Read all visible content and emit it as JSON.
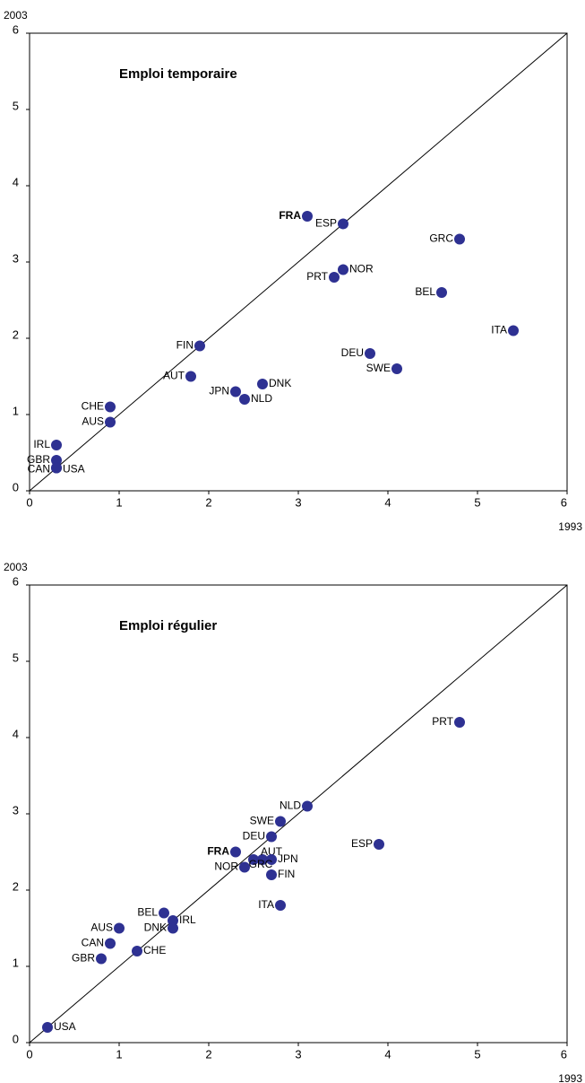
{
  "chart_data": [
    {
      "type": "scatter",
      "title": "Emploi temporaire",
      "x_label": "1993",
      "y_label": "2003",
      "color": "#2e3192",
      "labels": [
        "FRA",
        "ESP",
        "GRC",
        "NOR",
        "PRT",
        "BEL",
        "ITA",
        "FIN",
        "DEU",
        "SWE",
        "AUT",
        "DNK",
        "JPN",
        "NLD",
        "CHE",
        "AUS",
        "IRL",
        "GBR",
        "CAN",
        "USA"
      ],
      "x": [
        3.1,
        3.5,
        4.8,
        3.5,
        3.4,
        4.6,
        5.4,
        1.9,
        3.8,
        4.1,
        1.8,
        2.6,
        2.3,
        2.4,
        0.9,
        0.9,
        0.3,
        0.3,
        0.3,
        0.3
      ],
      "values": [
        3.6,
        3.5,
        3.3,
        2.9,
        2.8,
        2.6,
        2.1,
        1.9,
        1.8,
        1.6,
        1.5,
        1.4,
        1.3,
        1.2,
        1.1,
        0.9,
        0.6,
        0.4,
        0.3,
        0.3
      ],
      "xlim": [
        0,
        6
      ],
      "ylim": [
        0,
        6
      ],
      "xticks": [
        0,
        1,
        2,
        3,
        4,
        5,
        6
      ],
      "yticks": [
        0,
        1,
        2,
        3,
        4,
        5,
        6
      ]
    },
    {
      "type": "scatter",
      "title": "Emploi régulier",
      "x_label": "1993",
      "y_label": "2003",
      "color": "#2e3192",
      "labels": [
        "PRT",
        "NLD",
        "SWE",
        "DEU",
        "ESP",
        "FRA",
        "AUT",
        "JPN",
        "GRC",
        "NOR",
        "FIN",
        "ITA",
        "BEL",
        "IRL",
        "DNK",
        "AUS",
        "CAN",
        "CHE",
        "GBR",
        "USA"
      ],
      "x": [
        4.8,
        3.1,
        2.8,
        2.7,
        3.9,
        2.3,
        2.6,
        2.7,
        2.5,
        2.4,
        2.7,
        2.8,
        1.5,
        1.6,
        1.6,
        1.0,
        0.9,
        1.2,
        0.8,
        0.2
      ],
      "values": [
        4.2,
        3.1,
        2.9,
        2.7,
        2.6,
        2.5,
        2.4,
        2.4,
        2.4,
        2.3,
        2.2,
        1.8,
        1.7,
        1.6,
        1.5,
        1.5,
        1.3,
        1.2,
        1.1,
        0.2
      ],
      "xlim": [
        0,
        6
      ],
      "ylim": [
        0,
        6
      ],
      "xticks": [
        0,
        1,
        2,
        3,
        4,
        5,
        6
      ],
      "yticks": [
        0,
        1,
        2,
        3,
        4,
        5,
        6
      ]
    }
  ]
}
